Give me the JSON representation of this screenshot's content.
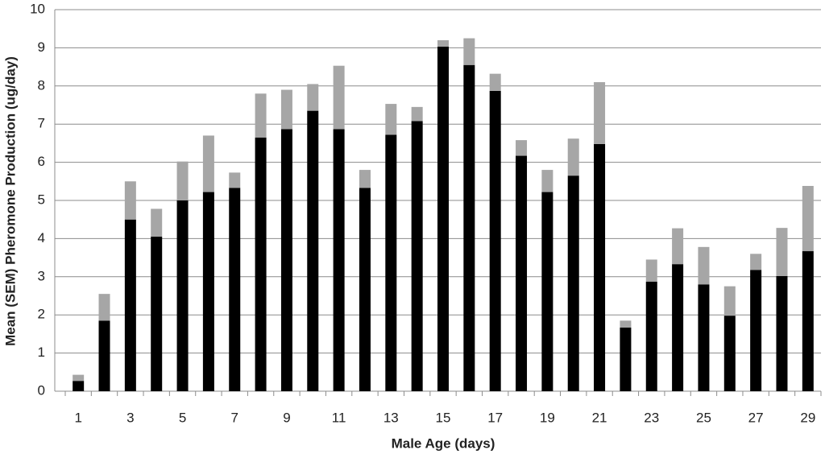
{
  "chart_data": {
    "type": "stacked_bar",
    "x_label": "Male Age (days)",
    "y_label": "Mean (SEM) Pheromone Production (ug/day)",
    "categories": [
      1,
      null,
      3,
      null,
      5,
      null,
      7,
      null,
      9,
      null,
      11,
      null,
      13,
      null,
      15,
      null,
      17,
      null,
      19,
      null,
      21,
      null,
      23,
      null,
      25,
      null,
      27,
      null,
      29
    ],
    "series": [
      {
        "color": "#000000",
        "values": [
          0.27,
          1.85,
          4.5,
          4.05,
          5.0,
          5.22,
          5.33,
          6.65,
          6.87,
          7.35,
          6.87,
          5.33,
          6.72,
          7.08,
          9.03,
          8.55,
          7.87,
          6.17,
          5.22,
          5.65,
          6.48,
          1.67,
          2.87,
          3.33,
          2.8,
          1.98,
          3.18,
          3.02,
          3.67
        ]
      },
      {
        "color": "#a6a6a6",
        "values": [
          0.16,
          0.7,
          1.0,
          0.73,
          1.02,
          1.48,
          0.4,
          1.15,
          1.03,
          0.7,
          1.66,
          0.47,
          0.81,
          0.37,
          0.17,
          0.7,
          0.45,
          0.41,
          0.58,
          0.97,
          1.62,
          0.18,
          0.58,
          0.94,
          0.98,
          0.77,
          0.42,
          1.26,
          1.71
        ]
      }
    ],
    "ylim": [
      0,
      10
    ],
    "yticks": [
      0,
      1,
      2,
      3,
      4,
      5,
      6,
      7,
      8,
      9,
      10
    ],
    "grid": true
  }
}
